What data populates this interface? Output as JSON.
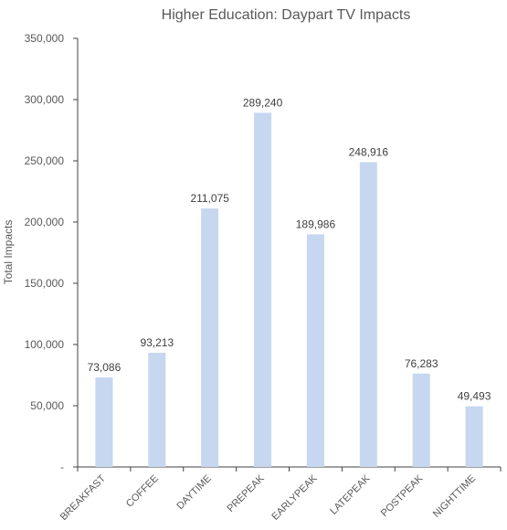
{
  "chart_data": {
    "type": "bar",
    "title": "Higher Education: Daypart TV Impacts",
    "xlabel": "",
    "ylabel": "Total Impacts",
    "categories": [
      "BREAKFAST",
      "COFFEE",
      "DAYTIME",
      "PREPEAK",
      "EARLYPEAK",
      "LATEPEAK",
      "POSTPEAK",
      "NIGHTTIME"
    ],
    "values": [
      73086,
      93213,
      211075,
      289240,
      189986,
      248916,
      76283,
      49493
    ],
    "data_labels": [
      "73,086",
      "93,213",
      "211,075",
      "289,240",
      "189,986",
      "248,916",
      "76,283",
      "49,493"
    ],
    "ylim": [
      0,
      350000
    ],
    "yticks": [
      0,
      50000,
      100000,
      150000,
      200000,
      250000,
      300000,
      350000
    ],
    "ytick_labels": [
      "-",
      "50,000",
      "100,000",
      "150,000",
      "200,000",
      "250,000",
      "300,000",
      "350,000"
    ],
    "grid": false,
    "legend": "none",
    "bar_color": "#c6d7ef",
    "axis_color": "#404040",
    "text_color": "#595959"
  }
}
